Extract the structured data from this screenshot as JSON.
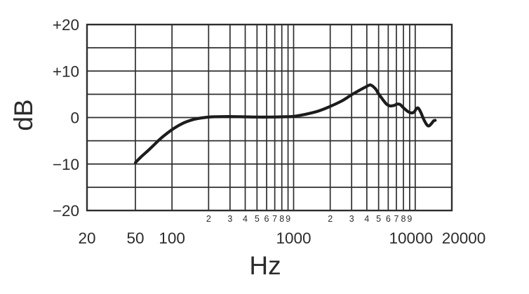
{
  "axis_titles": {
    "y": "dB",
    "x": "Hz"
  },
  "chart_data": {
    "type": "line",
    "title": "",
    "xlabel": "Hz",
    "ylabel": "dB",
    "x_scale": "log",
    "x_range": [
      20,
      20000
    ],
    "y_range": [
      -20,
      20
    ],
    "grid": true,
    "legend_position": "none",
    "y_gridline_step_db": 5,
    "x_gridlines_hz": [
      50,
      100,
      200,
      300,
      400,
      500,
      600,
      700,
      800,
      900,
      1000,
      2000,
      3000,
      4000,
      5000,
      6000,
      7000,
      8000,
      9000,
      10000
    ],
    "y_ticks": [
      {
        "value": 20,
        "label": "+20"
      },
      {
        "value": 10,
        "label": "+10"
      },
      {
        "value": 0,
        "label": "0"
      },
      {
        "value": -10,
        "label": "−10"
      },
      {
        "value": -20,
        "label": "−20"
      }
    ],
    "x_major_ticks": [
      {
        "value": 20,
        "label": "20"
      },
      {
        "value": 50,
        "label": "50"
      },
      {
        "value": 100,
        "label": "100"
      },
      {
        "value": 1000,
        "label": "1000"
      },
      {
        "value": 10000,
        "label": "10000"
      },
      {
        "value": 20000,
        "label": "20000"
      }
    ],
    "x_minor_tick_labels": [
      {
        "value": 200,
        "label": "2"
      },
      {
        "value": 300,
        "label": "3"
      },
      {
        "value": 400,
        "label": "4"
      },
      {
        "value": 500,
        "label": "5"
      },
      {
        "value": 600,
        "label": "6"
      },
      {
        "value": 700,
        "label": "7"
      },
      {
        "value": 800,
        "label": "8"
      },
      {
        "value": 900,
        "label": "9"
      },
      {
        "value": 2000,
        "label": "2"
      },
      {
        "value": 3000,
        "label": "3"
      },
      {
        "value": 4000,
        "label": "4"
      },
      {
        "value": 5000,
        "label": "5"
      },
      {
        "value": 6000,
        "label": "6"
      },
      {
        "value": 7000,
        "label": "7"
      },
      {
        "value": 8000,
        "label": "8"
      },
      {
        "value": 9000,
        "label": "9"
      }
    ],
    "series": [
      {
        "name": "frequency-response",
        "color": "#1c1c1c",
        "stroke_width": 4.2,
        "points_hz_db": [
          [
            50,
            -9.7
          ],
          [
            56,
            -8.4
          ],
          [
            63,
            -7.2
          ],
          [
            71,
            -5.9
          ],
          [
            80,
            -4.6
          ],
          [
            90,
            -3.5
          ],
          [
            100,
            -2.6
          ],
          [
            112,
            -1.8
          ],
          [
            126,
            -1.1
          ],
          [
            142,
            -0.6
          ],
          [
            160,
            -0.25
          ],
          [
            185,
            0.0
          ],
          [
            215,
            0.15
          ],
          [
            260,
            0.2
          ],
          [
            320,
            0.2
          ],
          [
            400,
            0.15
          ],
          [
            500,
            0.1
          ],
          [
            630,
            0.1
          ],
          [
            800,
            0.15
          ],
          [
            1000,
            0.25
          ],
          [
            1250,
            0.7
          ],
          [
            1600,
            1.4
          ],
          [
            2000,
            2.4
          ],
          [
            2500,
            3.6
          ],
          [
            3000,
            4.9
          ],
          [
            3500,
            5.9
          ],
          [
            4000,
            6.7
          ],
          [
            4300,
            7.0
          ],
          [
            4700,
            6.2
          ],
          [
            5000,
            5.1
          ],
          [
            5400,
            3.9
          ],
          [
            5800,
            2.9
          ],
          [
            6200,
            2.5
          ],
          [
            6700,
            2.6
          ],
          [
            7100,
            2.9
          ],
          [
            7500,
            2.8
          ],
          [
            8000,
            2.1
          ],
          [
            8700,
            1.3
          ],
          [
            9300,
            1.0
          ],
          [
            9800,
            1.2
          ],
          [
            10300,
            2.0
          ],
          [
            10700,
            1.9
          ],
          [
            11200,
            0.9
          ],
          [
            11800,
            -0.5
          ],
          [
            12500,
            -1.6
          ],
          [
            13000,
            -1.8
          ],
          [
            13600,
            -1.3
          ],
          [
            14200,
            -0.7
          ],
          [
            14600,
            -0.6
          ]
        ]
      }
    ],
    "colors": {
      "grid": "#2e2e2e",
      "border": "#2e2e2e",
      "text": "#2b2b2b",
      "background": "#ffffff"
    }
  }
}
